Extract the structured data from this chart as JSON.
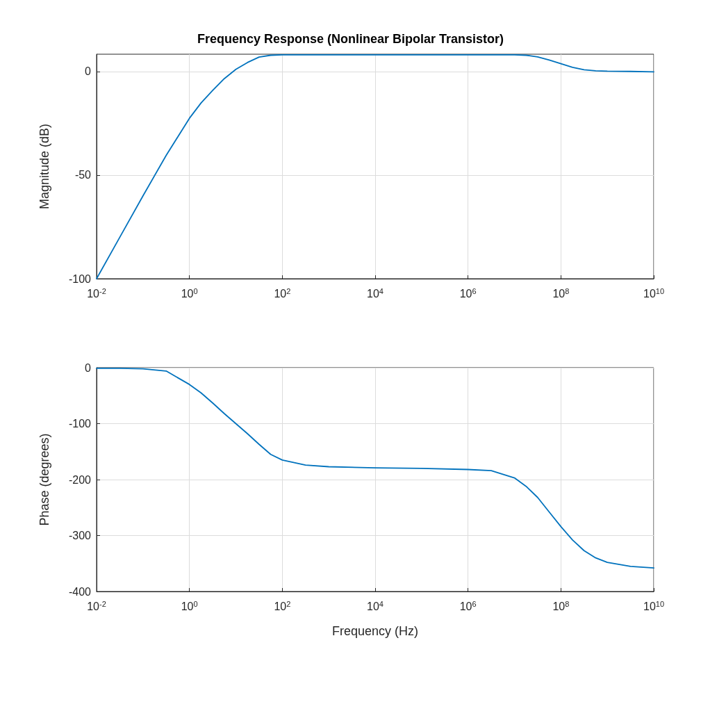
{
  "chart_data": [
    {
      "type": "line",
      "title": "Frequency Response (Nonlinear Bipolar Transistor)",
      "ylabel": "Magnitude (dB)",
      "log": "x",
      "grid": true,
      "marker": "none",
      "line_style": "solid",
      "legend": false,
      "xlim": [
        0.01,
        10000000000.0
      ],
      "xticks": [
        {
          "value": 0.01,
          "label": "10$^{-2}$"
        },
        {
          "value": 1,
          "label": "10$^{0}$"
        },
        {
          "value": 100,
          "label": "10$^{2}$"
        },
        {
          "value": 10000.0,
          "label": "10$^{4}$"
        },
        {
          "value": 1000000.0,
          "label": "10$^{6}$"
        },
        {
          "value": 100000000.0,
          "label": "10$^{8}$"
        },
        {
          "value": 10000000000.0,
          "label": "10$^{10}$"
        }
      ],
      "ylim": [
        -100,
        8.3
      ],
      "yticks": [
        -100,
        -50,
        0
      ],
      "series": [
        {
          "color": "#0072bd",
          "x": [
            0.01,
            0.0316,
            0.1,
            0.316,
            1,
            1.78,
            3.16,
            5.62,
            10,
            17.8,
            31.6,
            56.2,
            100,
            1000.0,
            10000.0,
            100000.0,
            1000000.0,
            10000000.0,
            17800000.0,
            31600000.0,
            56200000.0,
            100000000.0,
            178000000.0,
            316000000.0,
            562000000.0,
            1000000000.0,
            3160000000.0,
            10000000000.0
          ],
          "values": [
            -100,
            -80,
            -60,
            -40.5,
            -22.6,
            -15.2,
            -9.2,
            -3.5,
            1,
            4.3,
            6.9,
            7.8,
            8,
            8,
            8,
            8,
            8,
            8,
            7.8,
            7,
            5.5,
            3.7,
            2,
            0.8,
            0.3,
            0.1,
            0,
            -0.2
          ]
        }
      ]
    },
    {
      "type": "line",
      "xlabel": "Frequency (Hz)",
      "ylabel": "Phase (degrees)",
      "log": "x",
      "grid": true,
      "marker": "none",
      "line_style": "solid",
      "legend": false,
      "xlim": [
        0.01,
        10000000000.0
      ],
      "xticks": [
        {
          "value": 0.01,
          "label": "10$^{-2}$"
        },
        {
          "value": 1,
          "label": "10$^{0}$"
        },
        {
          "value": 100,
          "label": "10$^{2}$"
        },
        {
          "value": 10000.0,
          "label": "10$^{4}$"
        },
        {
          "value": 1000000.0,
          "label": "10$^{6}$"
        },
        {
          "value": 100000000.0,
          "label": "10$^{8}$"
        },
        {
          "value": 10000000000.0,
          "label": "10$^{10}$"
        }
      ],
      "ylim": [
        -400,
        0
      ],
      "yticks": [
        -400,
        -300,
        -200,
        -100,
        0
      ],
      "series": [
        {
          "color": "#0072bd",
          "x": [
            0.01,
            0.0316,
            0.1,
            0.316,
            1,
            1.78,
            3.16,
            5.62,
            10,
            17.8,
            31.6,
            56.2,
            100,
            316,
            1000.0,
            10000.0,
            100000.0,
            1000000.0,
            3160000.0,
            10000000.0,
            17800000.0,
            31600000.0,
            56200000.0,
            100000000.0,
            178000000.0,
            316000000.0,
            562000000.0,
            1000000000.0,
            3160000000.0,
            10000000000.0
          ],
          "values": [
            -1,
            -1,
            -2,
            -6,
            -30,
            -45,
            -63,
            -82,
            -100,
            -118,
            -137,
            -155,
            -165,
            -174,
            -177,
            -179,
            -180,
            -182,
            -184,
            -197,
            -212,
            -232,
            -258,
            -284,
            -308,
            -327,
            -340,
            -348,
            -355,
            -358
          ]
        }
      ]
    }
  ]
}
